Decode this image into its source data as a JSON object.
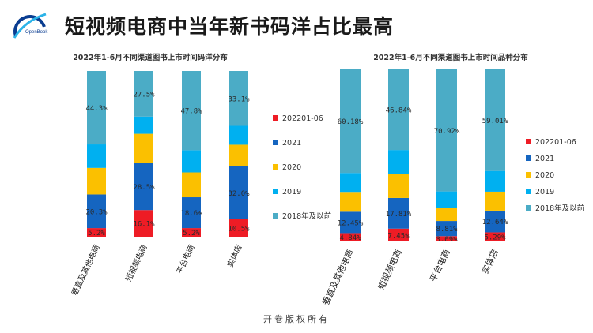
{
  "page": {
    "title": "短视频电商中当年新书码洋占比最高",
    "logo_text": "OpenBook",
    "footer": "开卷版权所有"
  },
  "legend_names": [
    "202201-06",
    "2021",
    "2020",
    "2019",
    "2018年及以前"
  ],
  "colors": {
    "202201-06": "#ee1c25",
    "2021": "#1565c0",
    "2020": "#fbc000",
    "2019": "#00b0f0",
    "2018年及以前": "#4bacc6"
  },
  "chart_data": [
    {
      "type": "bar",
      "stacked": true,
      "title": "2022年1-6月不同渠道图书上市时间码洋分布",
      "categories": [
        "垂直及其他电商",
        "短视频电商",
        "平台电商",
        "实体店"
      ],
      "ylim": [
        0,
        100
      ],
      "series": [
        {
          "name": "202201-06",
          "values": [
            5.2,
            16.1,
            5.2,
            10.5
          ],
          "labels": [
            "5.2%",
            "16.1%",
            "5.2%",
            "10.5%"
          ]
        },
        {
          "name": "2021",
          "values": [
            20.3,
            28.5,
            18.6,
            32.0
          ],
          "labels": [
            "20.3%",
            "28.5%",
            "18.6%",
            "32.0%"
          ]
        },
        {
          "name": "2020",
          "values": [
            16.0,
            17.5,
            15.0,
            13.0
          ],
          "labels": []
        },
        {
          "name": "2019",
          "values": [
            14.2,
            10.4,
            13.4,
            11.4
          ],
          "labels": []
        },
        {
          "name": "2018年及以前",
          "values": [
            44.3,
            27.5,
            47.8,
            33.1
          ],
          "labels": [
            "44.3%",
            "27.5%",
            "47.8%",
            "33.1%"
          ]
        }
      ]
    },
    {
      "type": "bar",
      "stacked": true,
      "title": "2022年1-6月不同渠道图书上市时间品种分布",
      "categories": [
        "垂直及其他电商",
        "短视频电商",
        "平台电商",
        "实体店"
      ],
      "ylim": [
        0,
        100
      ],
      "series": [
        {
          "name": "202201-06",
          "values": [
            4.84,
            7.45,
            3.09,
            5.29
          ],
          "labels": [
            "4.84%",
            "7.45%",
            "3.09%",
            "5.29%"
          ]
        },
        {
          "name": "2021",
          "values": [
            12.45,
            17.81,
            8.81,
            12.64
          ],
          "labels": [
            "12.45%",
            "17.81%",
            "8.81%",
            "12.64%"
          ]
        },
        {
          "name": "2020",
          "values": [
            11.5,
            14.0,
            7.5,
            11.0
          ],
          "labels": []
        },
        {
          "name": "2019",
          "values": [
            11.03,
            13.9,
            9.68,
            12.06
          ],
          "labels": []
        },
        {
          "name": "2018年及以前",
          "values": [
            60.18,
            46.84,
            70.92,
            59.01
          ],
          "labels": [
            "60.18%",
            "46.84%",
            "70.92%",
            "59.01%"
          ]
        }
      ]
    }
  ]
}
